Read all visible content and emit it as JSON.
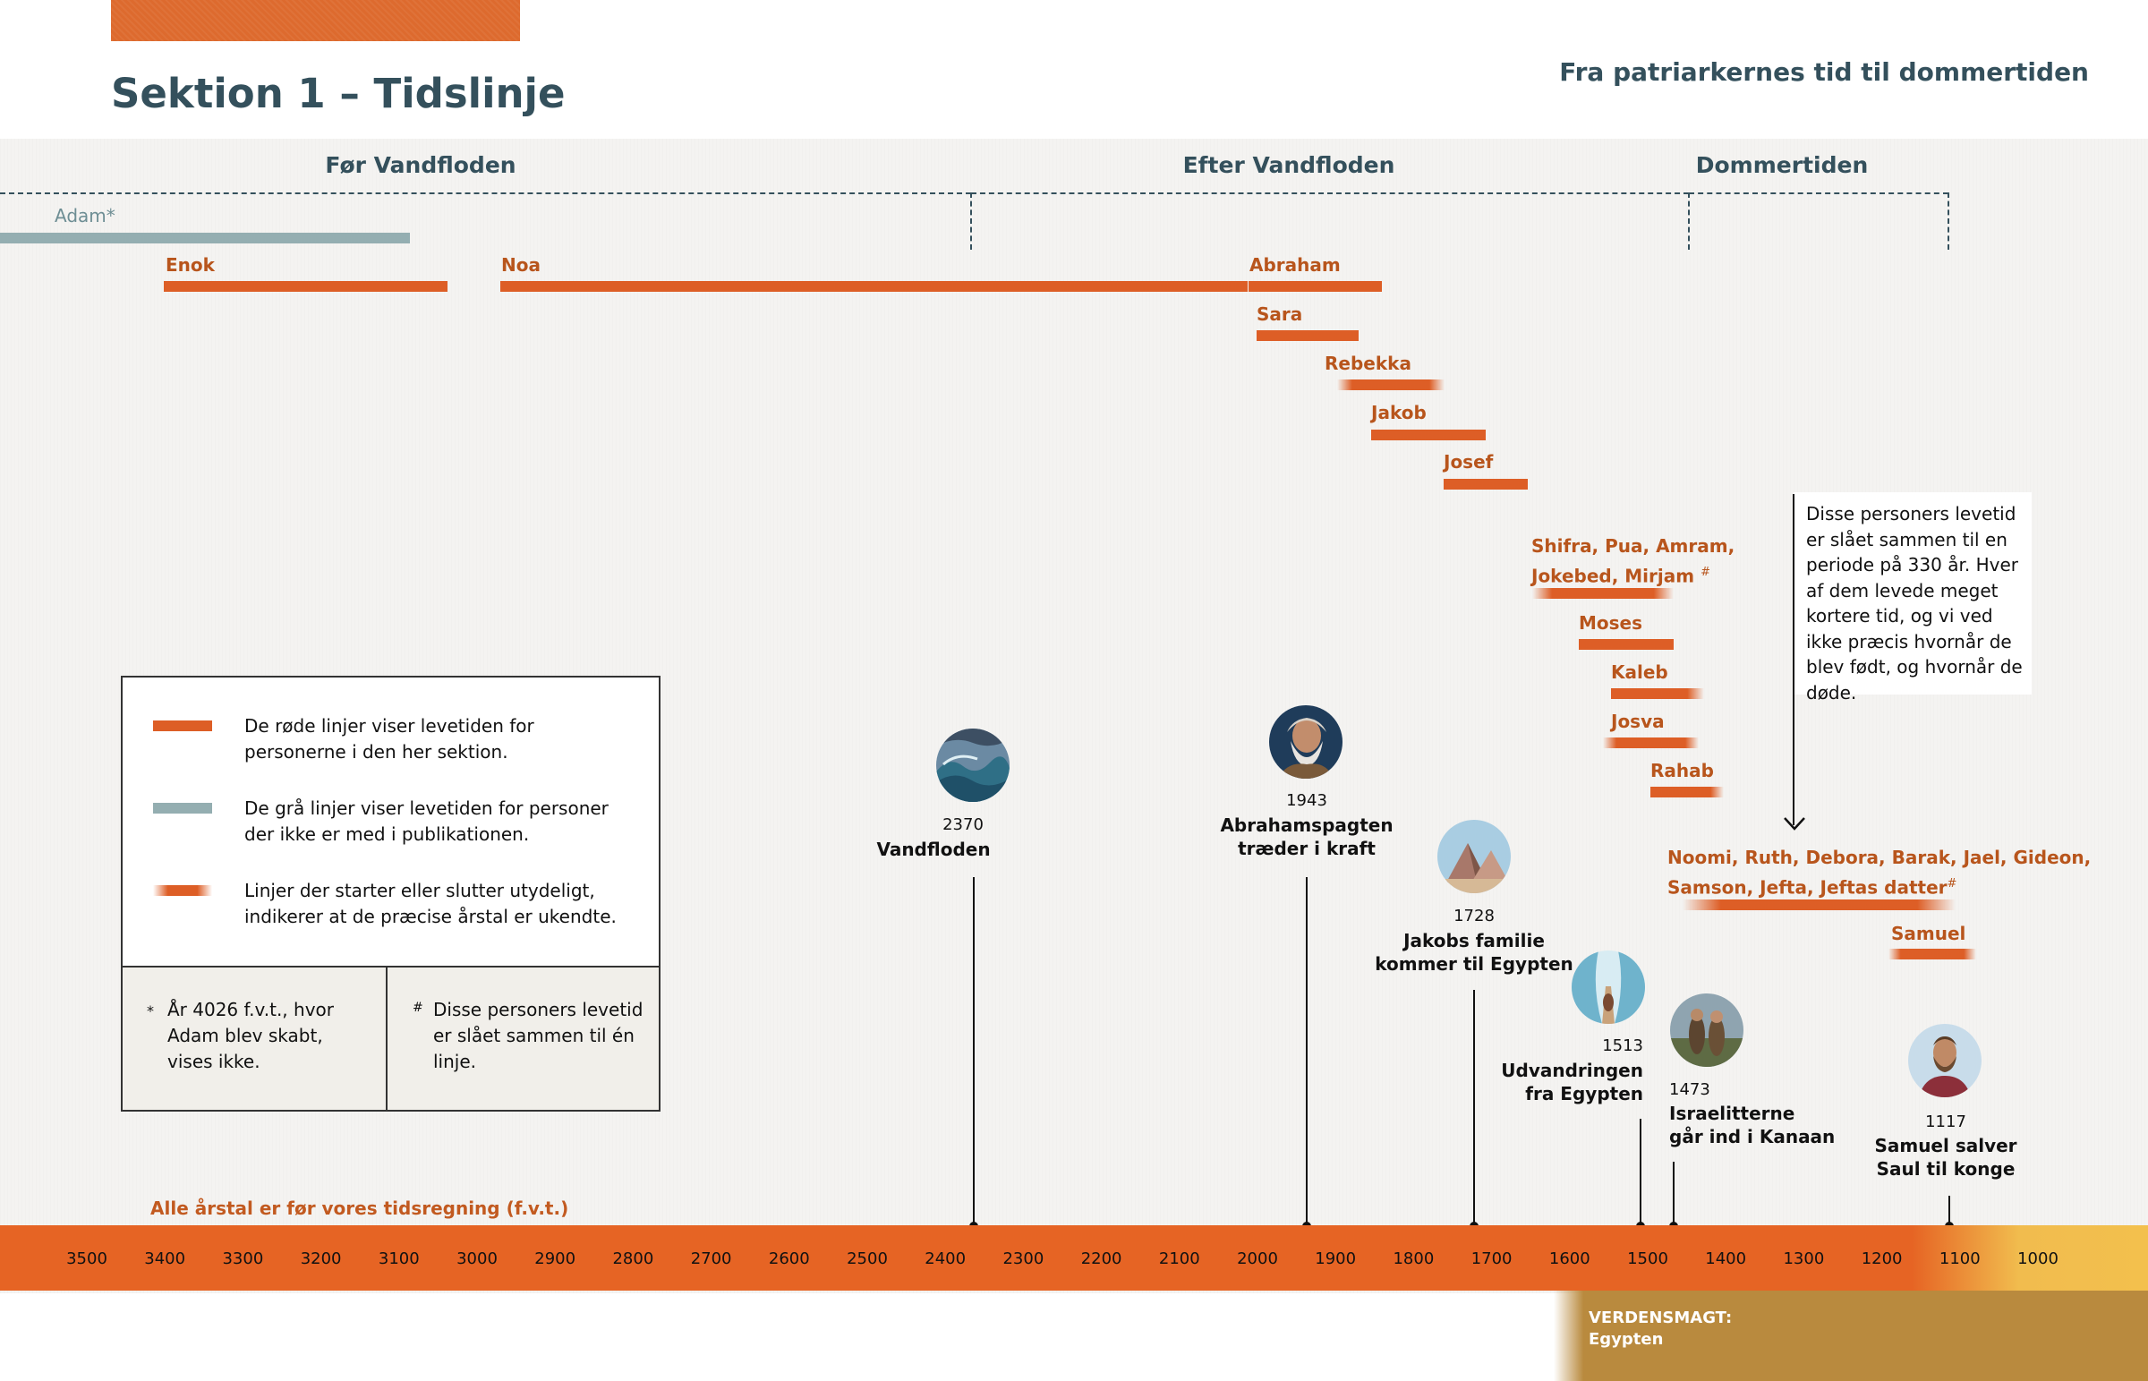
{
  "header": {
    "title": "Sektion 1 – Tidslinje",
    "subtitle": "Fra patriarkernes tid til dommertiden"
  },
  "eras": [
    {
      "label": "Før Vandfloden"
    },
    {
      "label": "Efter Vandfloden"
    },
    {
      "label": "Dommertiden"
    }
  ],
  "people": [
    {
      "name": "Adam",
      "mark": "*",
      "style": "gray"
    },
    {
      "name": "Enok",
      "style": "solid"
    },
    {
      "name": "Noa",
      "style": "solid"
    },
    {
      "name": "Abraham",
      "style": "solid"
    },
    {
      "name": "Sara",
      "style": "solid"
    },
    {
      "name": "Rebekka",
      "style": "fade-both"
    },
    {
      "name": "Jakob",
      "style": "solid"
    },
    {
      "name": "Josef",
      "style": "solid"
    },
    {
      "name": "Shifra, Pua, Amram,",
      "style": "fade-both"
    },
    {
      "name": "Jokebed, Mirjam",
      "mark": "#",
      "style": "fade-both"
    },
    {
      "name": "Moses",
      "style": "solid"
    },
    {
      "name": "Kaleb",
      "style": "fade-right"
    },
    {
      "name": "Josva",
      "style": "fade-both"
    },
    {
      "name": "Rahab",
      "style": "fade-both"
    },
    {
      "name": "Noomi, Ruth, Debora, Barak, Jael, Gideon,",
      "style": "fade-both"
    },
    {
      "name": "Samson, Jefta, Jeftas datter",
      "mark": "#",
      "style": "fade-both"
    },
    {
      "name": "Samuel",
      "style": "fade-both"
    }
  ],
  "events": [
    {
      "year": "2370",
      "line1": "Vandfloden",
      "line2": "",
      "icon": "flood-icon"
    },
    {
      "year": "1943",
      "line1": "Abrahamspagten",
      "line2": "træder i kraft",
      "icon": "abraham-portrait-icon"
    },
    {
      "year": "1728",
      "line1": "Jakobs familie",
      "line2": "kommer til Egypten",
      "icon": "pyramids-icon"
    },
    {
      "year": "1513",
      "line1": "Udvandringen",
      "line2": "fra Egypten",
      "icon": "red-sea-icon"
    },
    {
      "year": "1473",
      "line1": "Israelitterne",
      "line2": "går ind i Kanaan",
      "icon": "spies-icon"
    },
    {
      "year": "1117",
      "line1": "Samuel salver",
      "line2": "Saul til konge",
      "icon": "saul-portrait-icon"
    }
  ],
  "callout": {
    "text": "Disse personers levetid er slået sammen til en periode på 330 år. Hver af dem levede meget kortere tid, og vi ved ikke præcis hvornår de blev født, og hvornår de døde."
  },
  "legend": {
    "items": [
      {
        "text": "De røde linjer viser levetiden for personerne i den her sektion.",
        "swatch": "red"
      },
      {
        "text": "De grå linjer viser levetiden for personer der ikke er med i publikationen.",
        "swatch": "gray"
      },
      {
        "text": "Linjer der starter eller slutter utydeligt, indikerer at de præcise årstal er ukendte.",
        "swatch": "fade"
      }
    ],
    "notes": [
      {
        "mark": "*",
        "text": "År 4026 f.v.t., hvor Adam blev skabt, vises ikke."
      },
      {
        "mark": "#",
        "text": "Disse personers levetid er slået sammen til én linje."
      }
    ]
  },
  "axis": {
    "note": "Alle årstal er før vores tidsregning (f.v.t.)",
    "ticks": [
      "3500",
      "3400",
      "3300",
      "3200",
      "3100",
      "3000",
      "2900",
      "2800",
      "2700",
      "2600",
      "2500",
      "2400",
      "2300",
      "2200",
      "2100",
      "2000",
      "1900",
      "1800",
      "1700",
      "1600",
      "1500",
      "1400",
      "1300",
      "1200",
      "1100",
      "1000"
    ]
  },
  "world_power": {
    "title": "VERDENSMAGT:",
    "name": "Egypten"
  },
  "colors": {
    "accent_orange": "#dd5e26",
    "gray_line": "#94aeb1",
    "heading": "#34505c",
    "person_label": "#b8551c"
  }
}
